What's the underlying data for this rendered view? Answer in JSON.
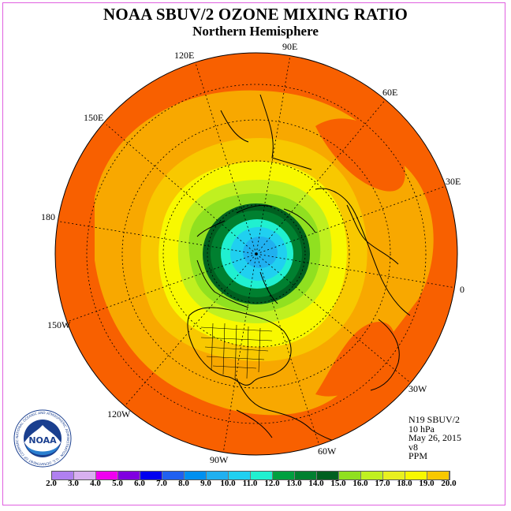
{
  "title": "NOAA SBUV/2 OZONE MIXING RATIO",
  "subtitle": "Northern Hemisphere",
  "longitude_labels": [
    "90E",
    "120E",
    "60E",
    "150E",
    "30E",
    "180",
    "0",
    "150W",
    "30W",
    "120W",
    "60W",
    "90W"
  ],
  "info": {
    "instrument": "N19 SBUV/2",
    "level": "10 hPa",
    "date": "May 26, 2015",
    "version": "v8",
    "units": "PPM"
  },
  "colorbar": {
    "colors": [
      "#b080f0",
      "#d8b0f0",
      "#f000f0",
      "#8000e0",
      "#0000f0",
      "#2060f0",
      "#0090f0",
      "#20b0f0",
      "#20d0f0",
      "#20f0d0",
      "#00a040",
      "#008030",
      "#006020",
      "#90e020",
      "#c0f020",
      "#e8f020",
      "#f8f800",
      "#f8c800",
      "#f8a800",
      "#f88000",
      "#f86000",
      "#f01000",
      "#f00000",
      "#8a5030"
    ],
    "ticks": [
      "2.0",
      "3.0",
      "4.0",
      "5.0",
      "6.0",
      "7.0",
      "8.0",
      "9.0",
      "10.0",
      "11.0",
      "12.0",
      "13.0",
      "14.0",
      "15.0",
      "16.0",
      "17.0",
      "18.0",
      "19.0",
      "20.0"
    ]
  },
  "logo": {
    "text": "NOAA",
    "ring_text": "NATIONAL OCEANIC AND ATMOSPHERIC ADMINISTRATION · U.S. DEPARTMENT OF COMMERCE"
  },
  "colors": {
    "frame": "#e060e0",
    "outer": "#f86000",
    "orange": "#f8a800",
    "gold": "#f8c800",
    "yellow": "#f8f800",
    "lime": "#e8f020",
    "green": "#90e020",
    "darkgreen": "#006020",
    "midgreen": "#008030",
    "cyan": "#20f0d0",
    "blue": "#20b0f0"
  }
}
